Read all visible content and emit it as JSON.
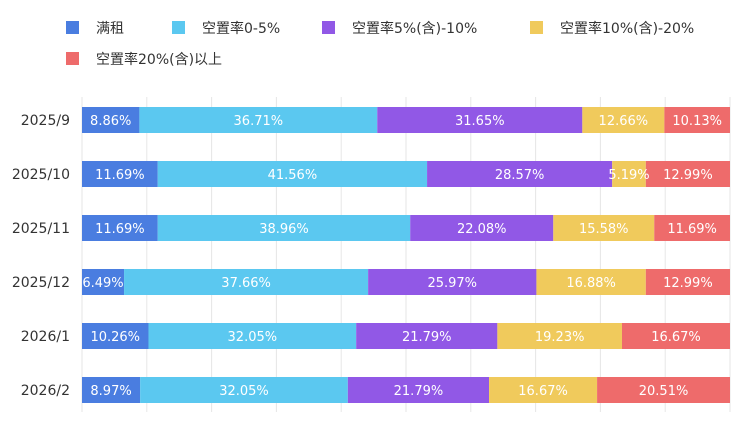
{
  "chart_data": {
    "type": "bar",
    "orientation": "horizontal",
    "stacked": true,
    "normalized": true,
    "title": "",
    "xlabel": "",
    "ylabel": "",
    "xlim": [
      0,
      100
    ],
    "grid": true,
    "legend_position": "top",
    "categories": [
      "2025/9",
      "2025/10",
      "2025/11",
      "2025/12",
      "2026/1",
      "2026/2"
    ],
    "series": [
      {
        "name": "满租",
        "color": "#4a7de0",
        "values": [
          8.86,
          11.69,
          11.69,
          6.49,
          10.26,
          8.97
        ],
        "labels": [
          "8.86%",
          "11.69%",
          "11.69%",
          "6.49%",
          "10.26%",
          "8.97%"
        ]
      },
      {
        "name": "空置率0-5%",
        "color": "#5bc8f0",
        "values": [
          36.71,
          41.56,
          38.96,
          37.66,
          32.05,
          32.05
        ],
        "labels": [
          "36.71%",
          "41.56%",
          "38.96%",
          "37.66%",
          "32.05%",
          "32.05%"
        ]
      },
      {
        "name": "空置率5%(含)-10%",
        "color": "#9158e6",
        "values": [
          31.65,
          28.57,
          22.08,
          25.97,
          21.79,
          21.79
        ],
        "labels": [
          "31.65%",
          "28.57%",
          "22.08%",
          "25.97%",
          "21.79%",
          "21.79%"
        ]
      },
      {
        "name": "空置率10%(含)-20%",
        "color": "#f0ca5c",
        "values": [
          12.66,
          5.19,
          15.58,
          16.88,
          19.23,
          16.67
        ],
        "labels": [
          "12.66%",
          "5.19%",
          "15.58%",
          "16.88%",
          "19.23%",
          "16.67%"
        ]
      },
      {
        "name": "空置率20%(含)以上",
        "color": "#ee6b6b",
        "values": [
          10.13,
          12.99,
          11.69,
          12.99,
          16.67,
          20.51
        ],
        "labels": [
          "10.13%",
          "12.99%",
          "11.69%",
          "12.99%",
          "16.67%",
          "20.51%"
        ]
      }
    ]
  }
}
